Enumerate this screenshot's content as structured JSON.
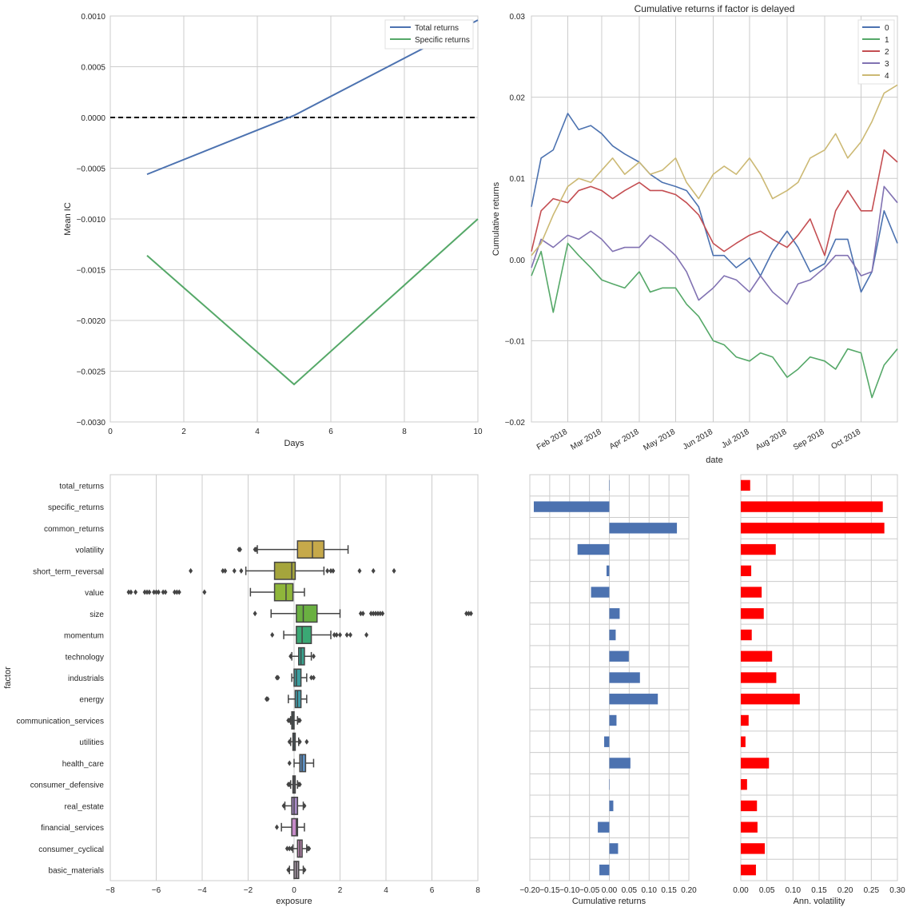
{
  "chart_data": [
    {
      "type": "line",
      "xlabel": "Days",
      "ylabel": "Mean IC",
      "xlim": [
        0,
        10
      ],
      "ylim": [
        -0.003,
        0.001
      ],
      "xticks": [
        "0",
        "2",
        "4",
        "6",
        "8",
        "10"
      ],
      "yticks": [
        "0.0010",
        "0.0005",
        "0.0000",
        "−0.0005",
        "−0.0010",
        "−0.0015",
        "−0.0020",
        "−0.0025",
        "−0.0030"
      ],
      "x": [
        1,
        5,
        10
      ],
      "grid": true,
      "legend": "top-right",
      "zero_line": 0,
      "series": [
        {
          "name": "Total returns",
          "color": "#4c72b0",
          "values": [
            -0.00056,
            2e-05,
            0.00096
          ]
        },
        {
          "name": "Specific returns",
          "color": "#55a868",
          "values": [
            -0.00136,
            -0.00263,
            -0.001
          ]
        }
      ]
    },
    {
      "type": "line",
      "title": "Cumulative returns if factor is delayed",
      "xlabel": "date",
      "ylabel": "Cumulative returns",
      "xlim": [
        "2018-01-02",
        "2018-10-31"
      ],
      "ylim": [
        -0.02,
        0.03
      ],
      "xticks": [
        "Feb 2018",
        "Mar 2018",
        "Apr 2018",
        "May 2018",
        "Jun 2018",
        "Jul 2018",
        "Aug 2018",
        "Sep 2018",
        "Oct 2018"
      ],
      "xtick_dates": [
        "2018-02-01",
        "2018-03-01",
        "2018-04-01",
        "2018-05-01",
        "2018-06-01",
        "2018-07-01",
        "2018-08-01",
        "2018-09-01",
        "2018-10-01"
      ],
      "yticks": [
        "0.03",
        "0.02",
        "0.01",
        "0.00",
        "−0.01",
        "−0.02"
      ],
      "x": [
        "2018-01-02",
        "2018-01-10",
        "2018-01-20",
        "2018-02-01",
        "2018-02-10",
        "2018-02-20",
        "2018-03-01",
        "2018-03-10",
        "2018-03-20",
        "2018-04-01",
        "2018-04-10",
        "2018-04-20",
        "2018-05-01",
        "2018-05-10",
        "2018-05-20",
        "2018-06-01",
        "2018-06-10",
        "2018-06-20",
        "2018-07-01",
        "2018-07-10",
        "2018-07-20",
        "2018-08-01",
        "2018-08-10",
        "2018-08-20",
        "2018-09-01",
        "2018-09-10",
        "2018-09-20",
        "2018-10-01",
        "2018-10-10",
        "2018-10-20",
        "2018-10-31"
      ],
      "grid": true,
      "legend": "top-right",
      "series": [
        {
          "name": "0",
          "color": "#4c72b0",
          "values": [
            0.0065,
            0.0125,
            0.0135,
            0.018,
            0.016,
            0.0165,
            0.0155,
            0.014,
            0.013,
            0.012,
            0.0105,
            0.0095,
            0.009,
            0.0085,
            0.0065,
            0.0005,
            0.0005,
            -0.001,
            0.0002,
            -0.002,
            0.001,
            0.0035,
            0.0015,
            -0.0015,
            -0.0005,
            0.0025,
            0.0025,
            -0.004,
            -0.0015,
            0.006,
            0.002
          ]
        },
        {
          "name": "1",
          "color": "#55a868",
          "values": [
            -0.002,
            0.001,
            -0.0065,
            0.002,
            0.0005,
            -0.001,
            -0.0025,
            -0.003,
            -0.0035,
            -0.0015,
            -0.004,
            -0.0035,
            -0.0035,
            -0.0055,
            -0.007,
            -0.01,
            -0.0105,
            -0.012,
            -0.0125,
            -0.0115,
            -0.012,
            -0.0145,
            -0.0135,
            -0.012,
            -0.0125,
            -0.0135,
            -0.011,
            -0.0115,
            -0.017,
            -0.013,
            -0.011
          ]
        },
        {
          "name": "2",
          "color": "#c44e52",
          "values": [
            0.001,
            0.006,
            0.0075,
            0.007,
            0.0085,
            0.009,
            0.0085,
            0.0075,
            0.0085,
            0.0095,
            0.0085,
            0.0085,
            0.008,
            0.007,
            0.0055,
            0.002,
            0.001,
            0.002,
            0.003,
            0.0035,
            0.0025,
            0.0015,
            0.003,
            0.005,
            0.0005,
            0.006,
            0.0085,
            0.006,
            0.006,
            0.0135,
            0.012
          ]
        },
        {
          "name": "3",
          "color": "#8172b2",
          "values": [
            -0.001,
            0.0025,
            0.0015,
            0.003,
            0.0025,
            0.0035,
            0.0025,
            0.001,
            0.0015,
            0.0015,
            0.003,
            0.002,
            0.0005,
            -0.0015,
            -0.005,
            -0.0035,
            -0.002,
            -0.0025,
            -0.004,
            -0.002,
            -0.004,
            -0.0055,
            -0.003,
            -0.0025,
            -0.001,
            0.0005,
            0.0005,
            -0.002,
            -0.0015,
            0.009,
            0.007
          ]
        },
        {
          "name": "4",
          "color": "#ccb974",
          "values": [
            0.0005,
            0.002,
            0.0055,
            0.009,
            0.01,
            0.0095,
            0.011,
            0.0125,
            0.0105,
            0.012,
            0.0105,
            0.011,
            0.0125,
            0.0095,
            0.0075,
            0.0105,
            0.0115,
            0.0105,
            0.0125,
            0.0105,
            0.0075,
            0.0085,
            0.0095,
            0.0125,
            0.0135,
            0.0155,
            0.0125,
            0.0145,
            0.017,
            0.0205,
            0.0215
          ]
        }
      ]
    },
    {
      "type": "box",
      "xlabel": "exposure",
      "ylabel": "factor",
      "xlim": [
        -8,
        8
      ],
      "xticks": [
        "−8",
        "−6",
        "−4",
        "−2",
        "0",
        "2",
        "4",
        "6",
        "8"
      ],
      "categories": [
        "total_returns",
        "specific_returns",
        "common_returns",
        "volatility",
        "short_term_reversal",
        "value",
        "size",
        "momentum",
        "technology",
        "industrials",
        "energy",
        "communication_services",
        "utilities",
        "health_care",
        "consumer_defensive",
        "real_estate",
        "financial_services",
        "consumer_cyclical",
        "basic_materials"
      ],
      "boxes": [
        null,
        null,
        null,
        {
          "color": "#c6a94a",
          "q1": 0.15,
          "median": 0.8,
          "q3": 1.3,
          "wlow": -1.6,
          "whigh": 2.35,
          "outliers": [
            -2.4,
            -2.35,
            -1.7,
            -1.65
          ]
        },
        {
          "color": "#a5a53c",
          "q1": -0.85,
          "median": -0.1,
          "q3": 0.05,
          "wlow": -2.1,
          "whigh": 1.3,
          "outliers": [
            -4.5,
            -3.1,
            -3.0,
            -2.6,
            -2.3,
            1.45,
            1.6,
            1.7,
            2.85,
            3.45,
            4.35
          ]
        },
        {
          "color": "#8fb63a",
          "q1": -0.85,
          "median": -0.35,
          "q3": -0.05,
          "wlow": -1.9,
          "whigh": 0.45,
          "outliers": [
            -7.2,
            -7.1,
            -6.9,
            -6.5,
            -6.4,
            -6.3,
            -6.1,
            -6.0,
            -5.9,
            -5.7,
            -5.6,
            -5.2,
            -5.1,
            -5.0,
            -3.9
          ]
        },
        {
          "color": "#6ab041",
          "q1": 0.1,
          "median": 0.4,
          "q3": 1.0,
          "wlow": -1.0,
          "whigh": 2.0,
          "outliers": [
            -1.7,
            2.9,
            3.0,
            3.35,
            3.45,
            3.55,
            3.65,
            3.75,
            3.85,
            7.5,
            7.6,
            7.7
          ]
        },
        {
          "color": "#3aa874",
          "q1": 0.1,
          "median": 0.35,
          "q3": 0.75,
          "wlow": -0.45,
          "whigh": 1.6,
          "outliers": [
            -0.95,
            1.75,
            1.85,
            2.0,
            2.3,
            2.45,
            3.15
          ]
        },
        {
          "color": "#38a38f",
          "q1": 0.2,
          "median": 0.3,
          "q3": 0.45,
          "wlow": -0.1,
          "whigh": 0.75,
          "outliers": [
            -0.15,
            0.85
          ]
        },
        {
          "color": "#3c9fa0",
          "q1": 0.0,
          "median": 0.1,
          "q3": 0.3,
          "wlow": -0.1,
          "whigh": 0.55,
          "outliers": [
            -0.75,
            -0.7,
            0.75,
            0.85
          ]
        },
        {
          "color": "#40a0ad",
          "q1": 0.05,
          "median": 0.15,
          "q3": 0.3,
          "wlow": -0.25,
          "whigh": 0.55,
          "outliers": [
            -1.2,
            -1.15
          ]
        },
        {
          "color": "#45a2b5",
          "q1": -0.1,
          "median": -0.05,
          "q3": 0.0,
          "wlow": -0.15,
          "whigh": 0.15,
          "outliers": [
            -0.25,
            -0.2,
            0.2,
            0.25
          ]
        },
        {
          "color": "#4d9fc0",
          "q1": -0.05,
          "median": 0.0,
          "q3": 0.05,
          "wlow": -0.15,
          "whigh": 0.2,
          "outliers": [
            -0.2,
            0.25,
            0.55
          ]
        },
        {
          "color": "#5f93c8",
          "q1": 0.25,
          "median": 0.35,
          "q3": 0.5,
          "wlow": 0.0,
          "whigh": 0.85,
          "outliers": [
            -0.2
          ]
        },
        {
          "color": "#8c95c8",
          "q1": -0.05,
          "median": 0.0,
          "q3": 0.05,
          "wlow": -0.15,
          "whigh": 0.15,
          "outliers": [
            -0.25,
            -0.2,
            0.2,
            0.25
          ]
        },
        {
          "color": "#a98bc8",
          "q1": -0.1,
          "median": 0.0,
          "q3": 0.15,
          "wlow": -0.4,
          "whigh": 0.4,
          "outliers": [
            -0.45,
            0.45
          ]
        },
        {
          "color": "#c68ac8",
          "q1": -0.1,
          "median": 0.1,
          "q3": 0.15,
          "wlow": -0.55,
          "whigh": 0.45,
          "outliers": [
            -0.75
          ]
        },
        {
          "color": "#c38bb8",
          "q1": 0.15,
          "median": 0.25,
          "q3": 0.35,
          "wlow": -0.05,
          "whigh": 0.55,
          "outliers": [
            -0.3,
            -0.2,
            -0.1,
            0.6,
            0.65
          ]
        },
        {
          "color": "#a898a8",
          "q1": 0.0,
          "median": 0.1,
          "q3": 0.2,
          "wlow": -0.2,
          "whigh": 0.4,
          "outliers": [
            -0.25,
            0.45
          ]
        }
      ]
    },
    {
      "type": "bar",
      "orientation": "horizontal",
      "xlabel": "Cumulative returns",
      "color": "#4c72b0",
      "xlim": [
        -0.2,
        0.2
      ],
      "xticks": [
        "−0.20",
        "−0.15",
        "−0.10",
        "−0.05",
        "0.00",
        "0.05",
        "0.10",
        "0.15",
        "0.20"
      ],
      "values": [
        0.001,
        -0.19,
        0.17,
        -0.08,
        -0.007,
        -0.046,
        0.026,
        0.016,
        0.049,
        0.077,
        0.122,
        0.018,
        -0.013,
        0.053,
        -0.001,
        0.01,
        -0.029,
        0.022,
        -0.025
      ]
    },
    {
      "type": "bar",
      "orientation": "horizontal",
      "xlabel": "Ann. volatility",
      "color": "#ff0000",
      "xlim": [
        0,
        0.3
      ],
      "xticks": [
        "0.00",
        "0.05",
        "0.10",
        "0.15",
        "0.20",
        "0.25",
        "0.30"
      ],
      "values": [
        0.018,
        0.272,
        0.275,
        0.067,
        0.02,
        0.04,
        0.044,
        0.021,
        0.06,
        0.068,
        0.113,
        0.015,
        0.009,
        0.054,
        0.012,
        0.031,
        0.032,
        0.046,
        0.029
      ]
    }
  ]
}
